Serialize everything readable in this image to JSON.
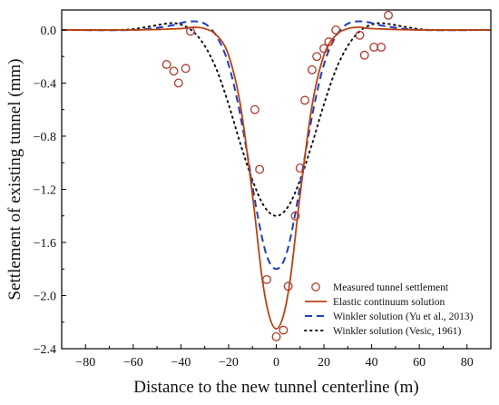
{
  "chart_data": {
    "type": "line",
    "title": "",
    "xlabel": "Distance to the new tunnel centerline (m)",
    "ylabel": "Settlement of existing tunnel (mm)",
    "xlim": [
      -90,
      90
    ],
    "ylim": [
      -2.4,
      0.15
    ],
    "x_ticks": [
      -80,
      -60,
      -40,
      -20,
      0,
      20,
      40,
      60,
      80
    ],
    "y_ticks": [
      0.0,
      -0.4,
      -0.8,
      -1.2,
      -1.6,
      -2.0,
      -2.4
    ],
    "grid": false,
    "legend_position": "bottom-right",
    "series": [
      {
        "name": "Measured tunnel settlement",
        "kind": "scatter",
        "color": "#b03a2e",
        "points": [
          {
            "x": -46,
            "y": -0.26
          },
          {
            "x": -43,
            "y": -0.31
          },
          {
            "x": -41,
            "y": -0.4
          },
          {
            "x": -38,
            "y": -0.29
          },
          {
            "x": -36,
            "y": -0.01
          },
          {
            "x": -9,
            "y": -0.6
          },
          {
            "x": -7,
            "y": -1.05
          },
          {
            "x": -4,
            "y": -1.88
          },
          {
            "x": 0,
            "y": -2.31
          },
          {
            "x": 3,
            "y": -2.26
          },
          {
            "x": 5,
            "y": -1.93
          },
          {
            "x": 8,
            "y": -1.4
          },
          {
            "x": 10,
            "y": -1.04
          },
          {
            "x": 12,
            "y": -0.53
          },
          {
            "x": 15,
            "y": -0.3
          },
          {
            "x": 17,
            "y": -0.2
          },
          {
            "x": 20,
            "y": -0.14
          },
          {
            "x": 22,
            "y": -0.09
          },
          {
            "x": 25,
            "y": 0.0
          },
          {
            "x": 35,
            "y": -0.04
          },
          {
            "x": 37,
            "y": -0.19
          },
          {
            "x": 41,
            "y": -0.13
          },
          {
            "x": 44,
            "y": -0.13
          },
          {
            "x": 47,
            "y": 0.11
          }
        ]
      },
      {
        "name": "Elastic continuum solution",
        "kind": "line",
        "style": "solid",
        "color": "#b8420f",
        "x": [
          -90,
          -60,
          -40,
          -35,
          -30,
          -25,
          -20,
          -15,
          -10,
          -6,
          -3,
          0,
          3,
          6,
          10,
          15,
          20,
          25,
          30,
          35,
          40,
          60,
          90
        ],
        "y": [
          0.0,
          0.0,
          0.01,
          0.02,
          0.01,
          -0.04,
          -0.19,
          -0.57,
          -1.24,
          -1.86,
          -2.15,
          -2.25,
          -2.15,
          -1.86,
          -1.24,
          -0.57,
          -0.19,
          -0.04,
          0.01,
          0.02,
          0.01,
          0.0,
          0.0
        ]
      },
      {
        "name": "Winkler solution (Yu et al., 2013)",
        "kind": "line",
        "style": "dashed",
        "color": "#1f3fbf",
        "x": [
          -90,
          -60,
          -45,
          -38,
          -32,
          -28,
          -24,
          -20,
          -16,
          -12,
          -8,
          -4,
          0,
          4,
          8,
          12,
          16,
          20,
          24,
          28,
          32,
          38,
          45,
          60,
          90
        ],
        "y": [
          0.0,
          0.0,
          0.03,
          0.06,
          0.06,
          0.02,
          -0.08,
          -0.26,
          -0.56,
          -0.95,
          -1.38,
          -1.7,
          -1.8,
          -1.7,
          -1.38,
          -0.95,
          -0.56,
          -0.26,
          -0.08,
          0.02,
          0.06,
          0.06,
          0.03,
          0.0,
          0.0
        ]
      },
      {
        "name": "Winkler solution (Vesic, 1961)",
        "kind": "line",
        "style": "dotted",
        "color": "#111111",
        "x": [
          -90,
          -65,
          -55,
          -45,
          -40,
          -35,
          -30,
          -25,
          -20,
          -15,
          -10,
          -5,
          0,
          5,
          10,
          15,
          20,
          25,
          30,
          35,
          40,
          45,
          55,
          65,
          90
        ],
        "y": [
          0.0,
          0.0,
          0.02,
          0.05,
          0.04,
          -0.01,
          -0.12,
          -0.3,
          -0.56,
          -0.86,
          -1.13,
          -1.33,
          -1.4,
          -1.33,
          -1.13,
          -0.86,
          -0.56,
          -0.3,
          -0.12,
          -0.01,
          0.04,
          0.05,
          0.02,
          0.0,
          0.0
        ]
      }
    ]
  }
}
